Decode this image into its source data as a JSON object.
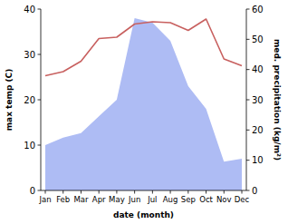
{
  "chart_data": {
    "type": "line",
    "xlabel": "date (month)",
    "ylabel": "max temp (C)",
    "y2label": "med. precipitation (kg/m²)",
    "categories": [
      "Jan",
      "Feb",
      "Mar",
      "Apr",
      "May",
      "Jun",
      "Jul",
      "Aug",
      "Sep",
      "Oct",
      "Nov",
      "Dec"
    ],
    "series": [
      {
        "type": "area",
        "axis": "y2",
        "color": "#aebcf4",
        "values": [
          15,
          17.5,
          19,
          24.5,
          30,
          57,
          55.5,
          49.5,
          34.5,
          27,
          9.5,
          10.5
        ]
      },
      {
        "type": "line",
        "color": "#c8605f",
        "values": [
          25.3,
          26.2,
          28.5,
          33.5,
          33.8,
          36.7,
          37.2,
          37.0,
          35.3,
          37.8,
          29.0,
          27.5
        ]
      }
    ],
    "ylim": [
      0,
      40
    ],
    "yticks": [
      0,
      10,
      20,
      30,
      40
    ],
    "y2lim": [
      0,
      60
    ],
    "y2ticks": [
      0,
      10,
      20,
      30,
      40,
      50,
      60
    ]
  }
}
